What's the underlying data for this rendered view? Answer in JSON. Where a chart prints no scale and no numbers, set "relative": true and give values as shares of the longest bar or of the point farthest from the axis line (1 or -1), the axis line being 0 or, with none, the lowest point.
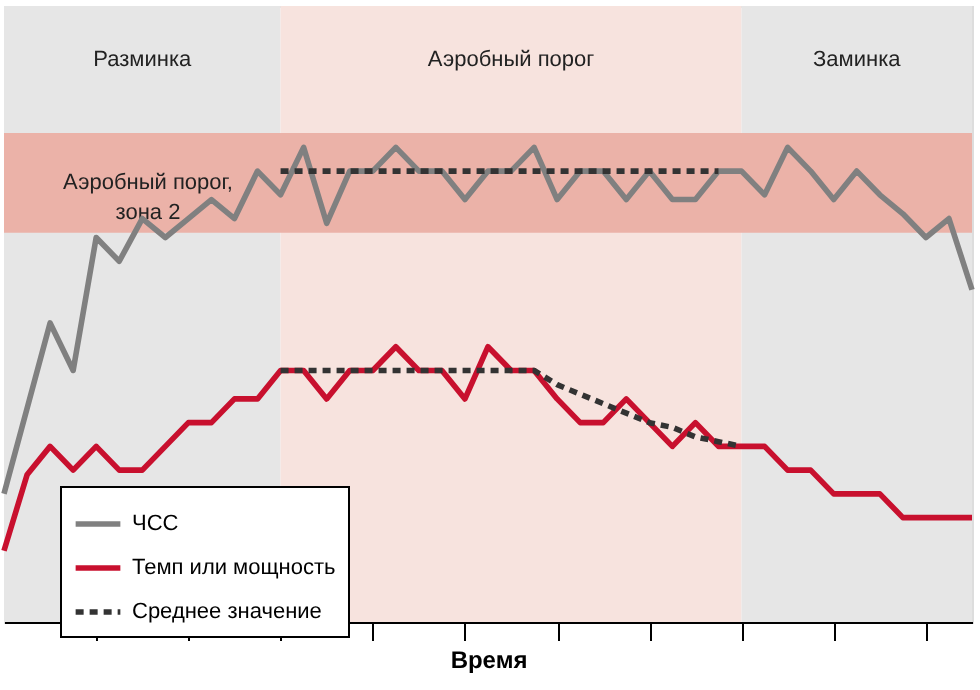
{
  "chart_data": {
    "type": "line",
    "xlabel": "Время",
    "relative": true,
    "categories": [
      null,
      null,
      null,
      null,
      null,
      null,
      null,
      null,
      null,
      null,
      null,
      null,
      null,
      null,
      null,
      null,
      null,
      null,
      null,
      null,
      null,
      null,
      null,
      null,
      null,
      null,
      null,
      null,
      null,
      null,
      null,
      null,
      null,
      null,
      null,
      null,
      null,
      null,
      null,
      null,
      null,
      null,
      null
    ],
    "grid": false,
    "legend": "bottom left",
    "marker": "none",
    "annotations": [
      "Разминка",
      "Аэробный порог",
      "Заминка"
    ],
    "bands": [
      {
        "axis": "y",
        "from": 0.82,
        "to": 1.03,
        "label": "Аэробный порог,\nзона 2",
        "color": "#ebb2a8"
      }
    ],
    "series": [
      {
        "name": "ЧСС",
        "color": "#808080",
        "line_style": "solid",
        "values": [
          0.27,
          0.45,
          0.63,
          0.53,
          0.81,
          0.76,
          0.85,
          0.81,
          0.85,
          0.89,
          0.85,
          0.95,
          0.9,
          1.0,
          0.84,
          0.95,
          0.95,
          1.0,
          0.95,
          0.95,
          0.89,
          0.95,
          0.95,
          1.0,
          0.89,
          0.95,
          0.95,
          0.89,
          0.95,
          0.89,
          0.89,
          0.95,
          0.95,
          0.9,
          1.0,
          0.95,
          0.89,
          0.95,
          0.9,
          0.86,
          0.81,
          0.85,
          0.7
        ]
      },
      {
        "name": "Темп или мощность",
        "color": "#c8102e",
        "line_style": "solid",
        "values": [
          0.15,
          0.31,
          0.37,
          0.32,
          0.37,
          0.32,
          0.32,
          0.37,
          0.42,
          0.42,
          0.47,
          0.47,
          0.53,
          0.53,
          0.47,
          0.53,
          0.53,
          0.58,
          0.53,
          0.53,
          0.47,
          0.58,
          0.53,
          0.53,
          0.47,
          0.42,
          0.42,
          0.47,
          0.42,
          0.37,
          0.42,
          0.37,
          0.37,
          0.37,
          0.32,
          0.32,
          0.27,
          0.27,
          0.27,
          0.22,
          0.22,
          0.22,
          0.22
        ]
      },
      {
        "name": "Среднее значение",
        "color": "#333333",
        "line_style": "dashed",
        "values": [
          null,
          null,
          null,
          null,
          null,
          null,
          null,
          null,
          null,
          null,
          null,
          null,
          0.95,
          0.95,
          0.95,
          0.95,
          0.95,
          0.95,
          0.95,
          0.95,
          0.95,
          0.95,
          0.95,
          0.95,
          0.95,
          0.95,
          0.95,
          0.95,
          0.95,
          0.95,
          0.95,
          0.95,
          null,
          null,
          null,
          null,
          null,
          null,
          null,
          null,
          null,
          null,
          null
        ]
      },
      {
        "color": "#333333",
        "line_style": "dashed",
        "values": [
          null,
          null,
          null,
          null,
          null,
          null,
          null,
          null,
          null,
          null,
          null,
          null,
          0.53,
          0.53,
          0.53,
          0.53,
          0.53,
          0.53,
          0.53,
          0.53,
          0.53,
          0.53,
          0.53,
          0.53,
          0.5,
          0.48,
          0.46,
          0.44,
          0.42,
          0.41,
          0.39,
          0.38,
          0.37,
          null,
          null,
          null,
          null,
          null,
          null,
          null,
          null,
          null,
          null
        ]
      }
    ]
  }
}
